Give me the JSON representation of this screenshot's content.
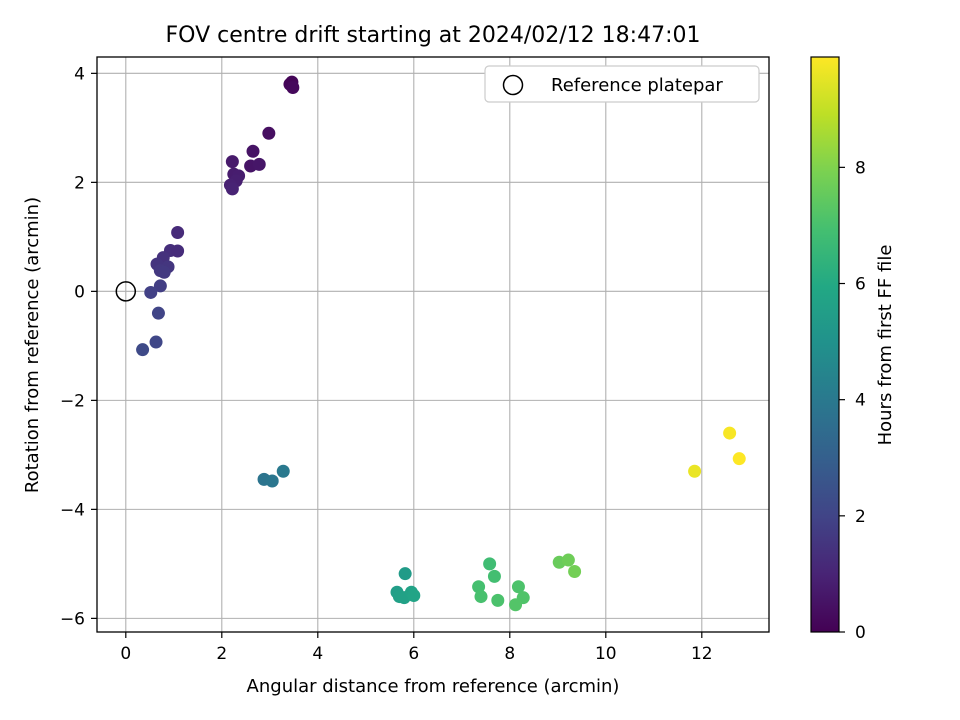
{
  "chart_data": {
    "type": "scatter",
    "title": "FOV centre drift starting at 2024/02/12 18:47:01",
    "xlabel": "Angular distance from reference (arcmin)",
    "ylabel": "Rotation from reference (arcmin)",
    "xlim": [
      -0.6,
      13.4
    ],
    "ylim": [
      -6.25,
      4.3
    ],
    "xticks": [
      0,
      2,
      4,
      6,
      8,
      10,
      12
    ],
    "yticks": [
      -6,
      -4,
      -2,
      0,
      2,
      4
    ],
    "xtick_labels": [
      "0",
      "2",
      "4",
      "6",
      "8",
      "10",
      "12"
    ],
    "ytick_labels": [
      "−6",
      "−4",
      "−2",
      "0",
      "2",
      "4"
    ],
    "grid": true,
    "legend": {
      "placement": "top-right",
      "entries": [
        "Reference platepar"
      ]
    },
    "reference_point": {
      "x": 0,
      "y": 0,
      "label": "Reference platepar"
    },
    "colorbar": {
      "label": "Hours from first FF file",
      "colormap": "viridis",
      "range": [
        0,
        9.9
      ],
      "ticks": [
        0,
        2,
        4,
        6,
        8
      ],
      "tick_labels": [
        "0",
        "2",
        "4",
        "6",
        "8"
      ]
    },
    "points": [
      {
        "x": 3.42,
        "y": 3.8,
        "c": 0.15
      },
      {
        "x": 3.46,
        "y": 3.84,
        "c": 0.1
      },
      {
        "x": 3.48,
        "y": 3.74,
        "c": 0.2
      },
      {
        "x": 2.98,
        "y": 2.9,
        "c": 0.4
      },
      {
        "x": 2.65,
        "y": 2.57,
        "c": 0.5
      },
      {
        "x": 2.6,
        "y": 2.3,
        "c": 0.55
      },
      {
        "x": 2.78,
        "y": 2.33,
        "c": 0.6
      },
      {
        "x": 2.22,
        "y": 2.38,
        "c": 0.7
      },
      {
        "x": 2.25,
        "y": 2.15,
        "c": 0.75
      },
      {
        "x": 2.35,
        "y": 2.12,
        "c": 0.8
      },
      {
        "x": 2.3,
        "y": 2.03,
        "c": 0.85
      },
      {
        "x": 2.18,
        "y": 1.95,
        "c": 0.9
      },
      {
        "x": 2.22,
        "y": 1.88,
        "c": 0.95
      },
      {
        "x": 1.08,
        "y": 1.08,
        "c": 1.2
      },
      {
        "x": 0.93,
        "y": 0.75,
        "c": 1.3
      },
      {
        "x": 1.08,
        "y": 0.74,
        "c": 1.25
      },
      {
        "x": 0.78,
        "y": 0.62,
        "c": 1.4
      },
      {
        "x": 0.65,
        "y": 0.5,
        "c": 1.5
      },
      {
        "x": 0.88,
        "y": 0.45,
        "c": 1.55
      },
      {
        "x": 0.72,
        "y": 0.38,
        "c": 1.6
      },
      {
        "x": 0.8,
        "y": 0.35,
        "c": 1.65
      },
      {
        "x": 0.72,
        "y": 0.1,
        "c": 1.8
      },
      {
        "x": 0.52,
        "y": -0.02,
        "c": 1.9
      },
      {
        "x": 0.68,
        "y": -0.4,
        "c": 2.0
      },
      {
        "x": 0.63,
        "y": -0.93,
        "c": 2.1
      },
      {
        "x": 0.35,
        "y": -1.07,
        "c": 2.2
      },
      {
        "x": 2.88,
        "y": -3.45,
        "c": 3.8
      },
      {
        "x": 3.05,
        "y": -3.48,
        "c": 3.9
      },
      {
        "x": 3.28,
        "y": -3.3,
        "c": 4.0
      },
      {
        "x": 5.82,
        "y": -5.18,
        "c": 5.4
      },
      {
        "x": 5.65,
        "y": -5.52,
        "c": 5.5
      },
      {
        "x": 5.7,
        "y": -5.6,
        "c": 5.6
      },
      {
        "x": 5.8,
        "y": -5.62,
        "c": 5.65
      },
      {
        "x": 5.95,
        "y": -5.52,
        "c": 5.7
      },
      {
        "x": 6.0,
        "y": -5.58,
        "c": 5.75
      },
      {
        "x": 7.58,
        "y": -5.0,
        "c": 6.8
      },
      {
        "x": 7.68,
        "y": -5.23,
        "c": 6.9
      },
      {
        "x": 7.35,
        "y": -5.42,
        "c": 6.95
      },
      {
        "x": 7.4,
        "y": -5.6,
        "c": 7.0
      },
      {
        "x": 7.75,
        "y": -5.67,
        "c": 7.05
      },
      {
        "x": 8.18,
        "y": -5.42,
        "c": 7.1
      },
      {
        "x": 8.28,
        "y": -5.62,
        "c": 7.15
      },
      {
        "x": 8.12,
        "y": -5.75,
        "c": 7.2
      },
      {
        "x": 9.03,
        "y": -4.97,
        "c": 7.6
      },
      {
        "x": 9.22,
        "y": -4.93,
        "c": 7.7
      },
      {
        "x": 9.35,
        "y": -5.14,
        "c": 7.8
      },
      {
        "x": 11.85,
        "y": -3.3,
        "c": 9.6
      },
      {
        "x": 12.58,
        "y": -2.6,
        "c": 9.8
      },
      {
        "x": 12.78,
        "y": -3.07,
        "c": 9.9
      }
    ]
  }
}
